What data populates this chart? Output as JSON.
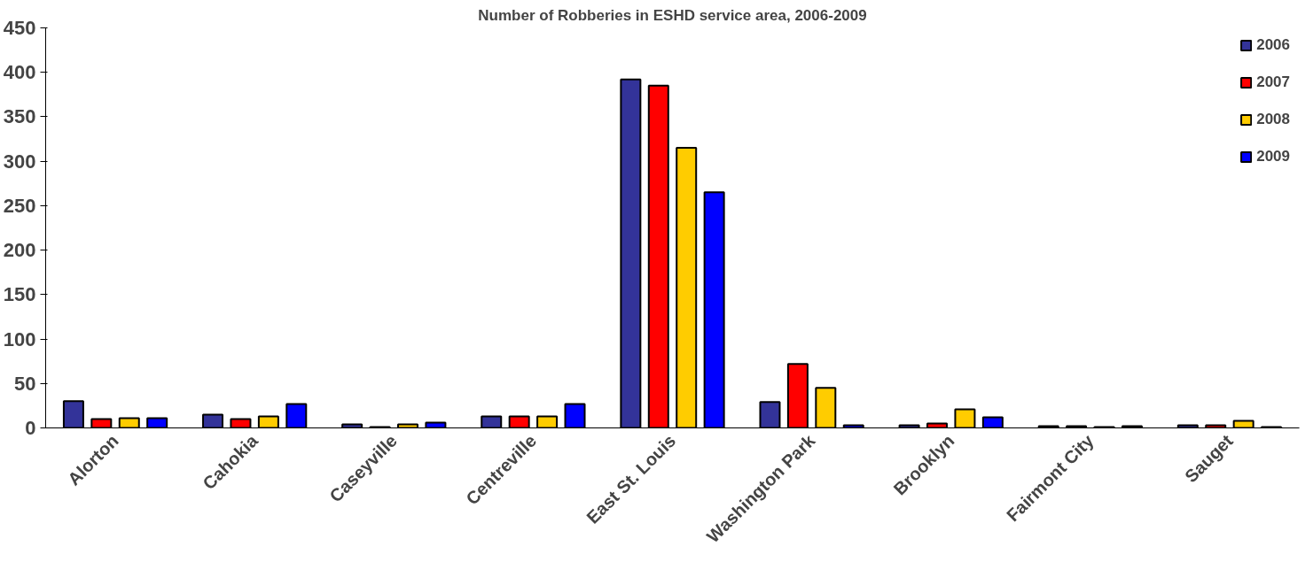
{
  "chart_data": {
    "type": "bar",
    "title": "Number of Robberies in ESHD service area, 2006-2009",
    "categories": [
      "Alorton",
      "Cahokia",
      "Caseyville",
      "Centreville",
      "East St. Louis",
      "Washington Park",
      "Brooklyn",
      "Fairmont City",
      "Sauget"
    ],
    "series": [
      {
        "name": "2006",
        "color": "#333399",
        "values": [
          30,
          15,
          4,
          13,
          392,
          29,
          3,
          2,
          3
        ]
      },
      {
        "name": "2007",
        "color": "#ff0000",
        "values": [
          10,
          10,
          1,
          13,
          385,
          72,
          5,
          2,
          3
        ]
      },
      {
        "name": "2008",
        "color": "#ffcc00",
        "values": [
          11,
          13,
          4,
          13,
          315,
          45,
          21,
          1,
          8
        ]
      },
      {
        "name": "2009",
        "color": "#0000ff",
        "values": [
          11,
          27,
          6,
          27,
          265,
          3,
          12,
          2,
          1
        ]
      }
    ],
    "ylim": [
      0,
      450
    ],
    "yticks": [
      0,
      50,
      100,
      150,
      200,
      250,
      300,
      350,
      400,
      450
    ],
    "grid": false,
    "legend": "top right"
  }
}
